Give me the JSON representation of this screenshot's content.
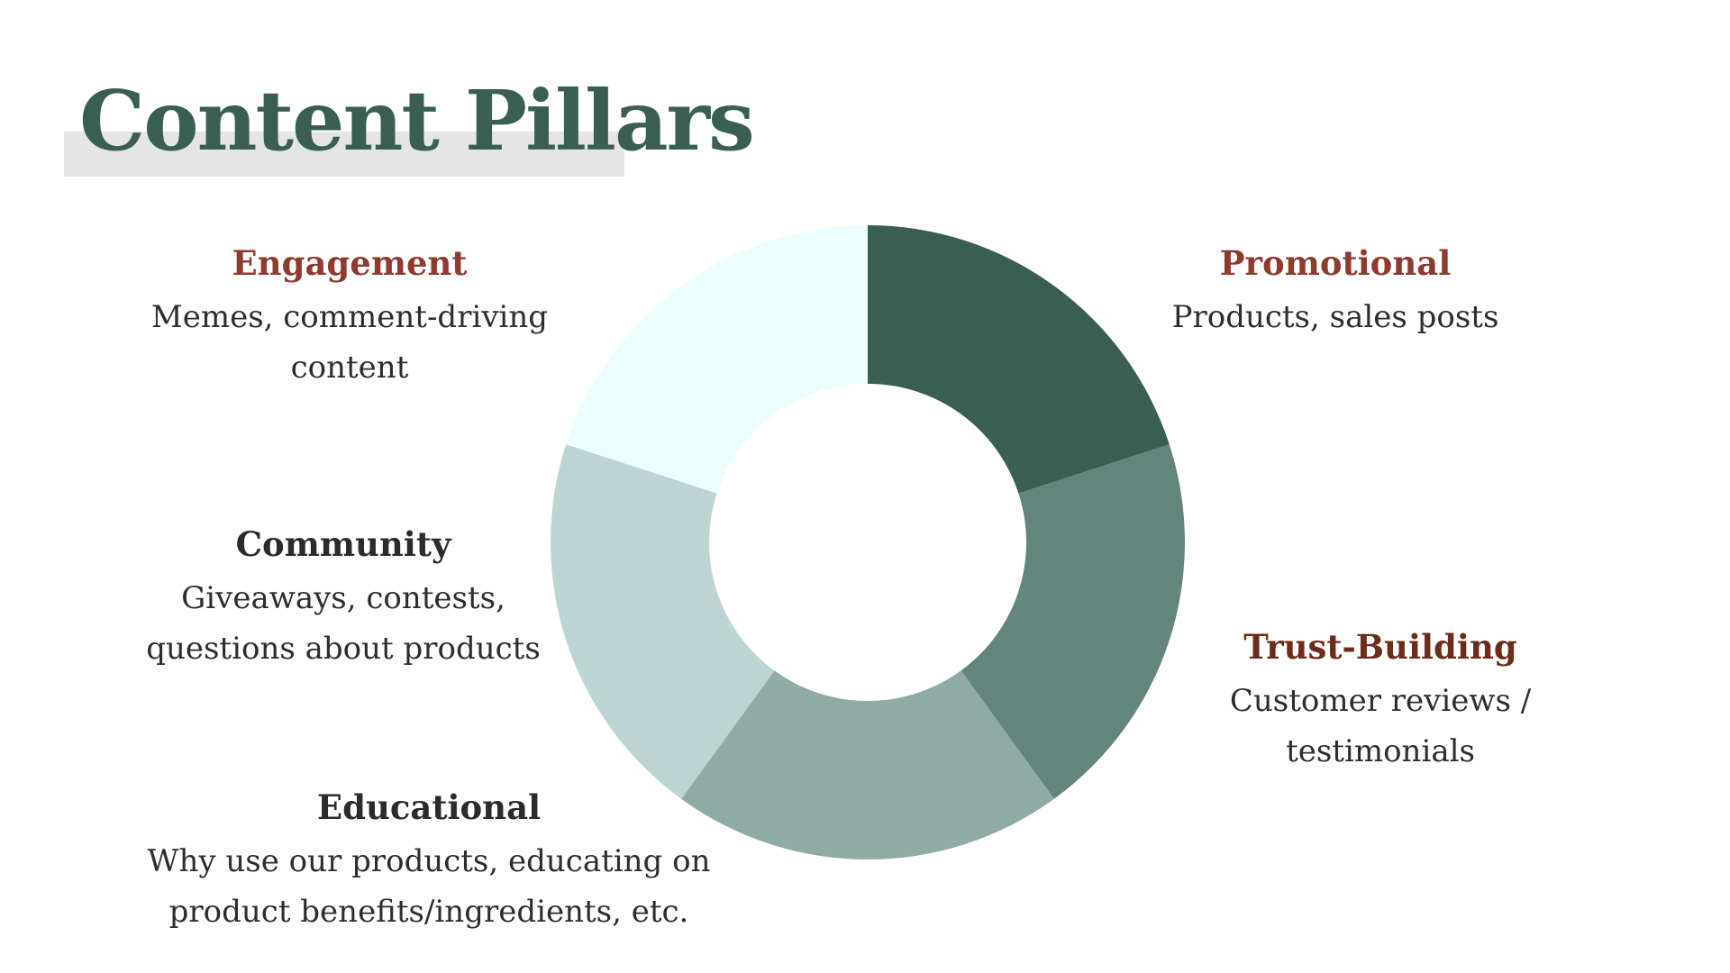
{
  "title": "Content Pillars",
  "colors": {
    "title": "#3a5f52",
    "title_highlight": "#e5e5e5",
    "heading_red": "#8e3a2f",
    "heading_brown": "#6b2c1c",
    "heading_dark": "#2b2b2b",
    "body_text": "#2d2d2d"
  },
  "pillars": [
    {
      "id": "promotional",
      "name": "Promotional",
      "lines": [
        "Products, sales posts"
      ],
      "color": "#3a5f52",
      "heading_color": "#8e3a2f"
    },
    {
      "id": "trust-building",
      "name": "Trust-Building",
      "lines": [
        "Customer reviews /",
        "testimonials"
      ],
      "color": "#63857b",
      "heading_color": "#6b2c1c"
    },
    {
      "id": "educational",
      "name": "Educational",
      "lines": [
        "Why use our products, educating on",
        "product benefits/ingredients, etc."
      ],
      "color": "#90aba5",
      "heading_color": "#2b2b2b"
    },
    {
      "id": "community",
      "name": "Community",
      "lines": [
        "Giveaways, contests,",
        "questions about products"
      ],
      "color": "#bcd5d2",
      "heading_color": "#2b2b2b"
    },
    {
      "id": "engagement",
      "name": "Engagement",
      "lines": [
        "Memes, comment-driving",
        "content"
      ],
      "color": "#ecfdfd",
      "heading_color": "#8e3a2f"
    }
  ]
}
